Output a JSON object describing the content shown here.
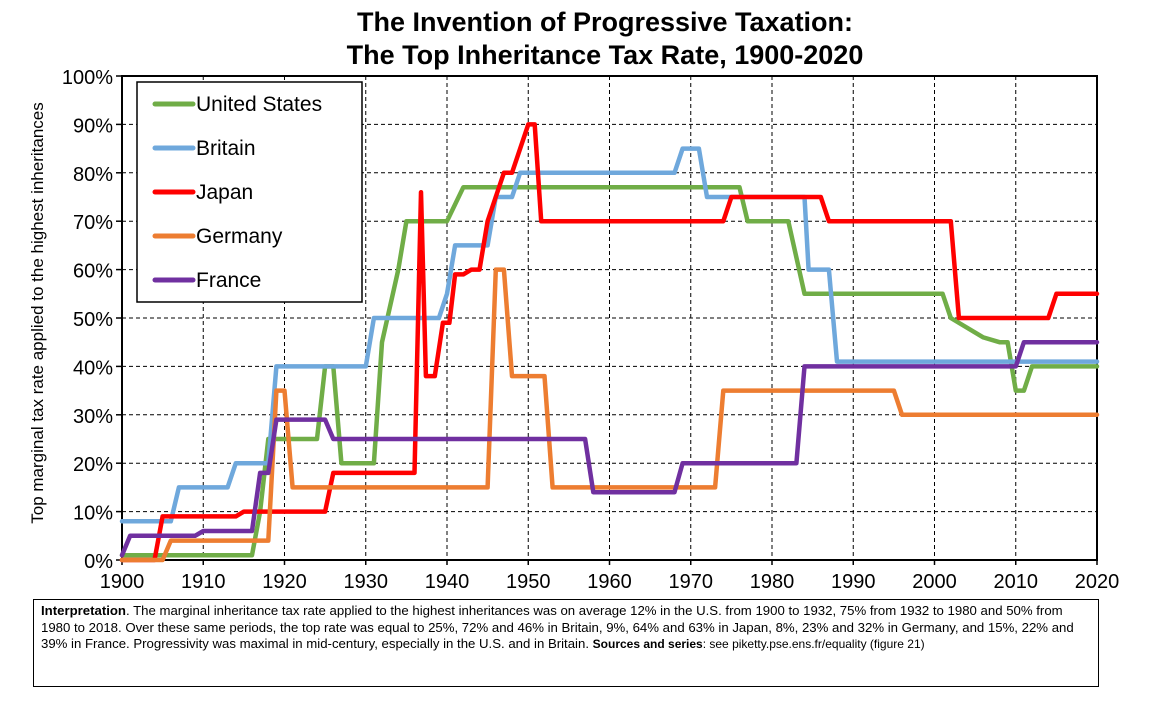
{
  "chart_data": {
    "type": "line",
    "title": "The Invention of Progressive Taxation:",
    "subtitle": "The Top Inheritance Tax Rate, 1900-2020",
    "xlabel": "",
    "ylabel": "Top marginal tax rate applied to the highest inheritances",
    "xlim": [
      1900,
      2020
    ],
    "ylim": [
      0,
      100
    ],
    "x_ticks": [
      "1900",
      "1910",
      "1920",
      "1930",
      "1940",
      "1950",
      "1960",
      "1970",
      "1980",
      "1990",
      "2000",
      "2010",
      "2020"
    ],
    "y_ticks": [
      "0%",
      "10%",
      "20%",
      "30%",
      "40%",
      "50%",
      "60%",
      "70%",
      "80%",
      "90%",
      "100%"
    ],
    "grid": "dashed",
    "legend_position": "top-left",
    "series": [
      {
        "name": "United States",
        "color": "#70ad47",
        "points": [
          [
            1900,
            1
          ],
          [
            1916,
            1
          ],
          [
            1917,
            10
          ],
          [
            1918,
            25
          ],
          [
            1924,
            25
          ],
          [
            1925,
            40
          ],
          [
            1926,
            40
          ],
          [
            1927,
            20
          ],
          [
            1928,
            20
          ],
          [
            1931,
            20
          ],
          [
            1932,
            45
          ],
          [
            1934,
            60
          ],
          [
            1935,
            70
          ],
          [
            1936,
            70
          ],
          [
            1940,
            70
          ],
          [
            1942,
            77
          ],
          [
            1976,
            77
          ],
          [
            1977,
            70
          ],
          [
            1982,
            70
          ],
          [
            1984,
            55
          ],
          [
            2001,
            55
          ],
          [
            2002,
            50
          ],
          [
            2006,
            46
          ],
          [
            2008,
            45
          ],
          [
            2009,
            45
          ],
          [
            2010,
            35
          ],
          [
            2011,
            35
          ],
          [
            2012,
            40
          ],
          [
            2020,
            40
          ]
        ]
      },
      {
        "name": "Britain",
        "color": "#6fa8dc",
        "points": [
          [
            1900,
            8
          ],
          [
            1906,
            8
          ],
          [
            1907,
            15
          ],
          [
            1913,
            15
          ],
          [
            1914,
            20
          ],
          [
            1918,
            20
          ],
          [
            1919,
            40
          ],
          [
            1930,
            40
          ],
          [
            1931,
            50
          ],
          [
            1939,
            50
          ],
          [
            1940,
            55
          ],
          [
            1941,
            65
          ],
          [
            1945,
            65
          ],
          [
            1946,
            75
          ],
          [
            1948,
            75
          ],
          [
            1949,
            80
          ],
          [
            1968,
            80
          ],
          [
            1969,
            85
          ],
          [
            1971,
            85
          ],
          [
            1972,
            75
          ],
          [
            1974,
            75
          ],
          [
            1975,
            75
          ],
          [
            1984,
            75
          ],
          [
            1984.5,
            60
          ],
          [
            1987,
            60
          ],
          [
            1988,
            41
          ],
          [
            2020,
            41
          ]
        ]
      },
      {
        "name": "Japan",
        "color": "#ff0000",
        "points": [
          [
            1900,
            0
          ],
          [
            1904,
            0
          ],
          [
            1905,
            9
          ],
          [
            1914,
            9
          ],
          [
            1915,
            10
          ],
          [
            1925,
            10
          ],
          [
            1926,
            18
          ],
          [
            1936,
            18
          ],
          [
            1936.8,
            76
          ],
          [
            1937.4,
            38
          ],
          [
            1938.5,
            38
          ],
          [
            1939.5,
            49
          ],
          [
            1940.3,
            49
          ],
          [
            1941,
            59
          ],
          [
            1942,
            59
          ],
          [
            1943,
            60
          ],
          [
            1944,
            60
          ],
          [
            1945,
            70
          ],
          [
            1947,
            80
          ],
          [
            1948,
            80
          ],
          [
            1950,
            90
          ],
          [
            1950.8,
            90
          ],
          [
            1951.6,
            70
          ],
          [
            1974,
            70
          ],
          [
            1975,
            75
          ],
          [
            1986,
            75
          ],
          [
            1987,
            70
          ],
          [
            2002,
            70
          ],
          [
            2003,
            50
          ],
          [
            2014,
            50
          ],
          [
            2015,
            55
          ],
          [
            2020,
            55
          ]
        ]
      },
      {
        "name": "Germany",
        "color": "#ed7d31",
        "points": [
          [
            1900,
            0
          ],
          [
            1905,
            0
          ],
          [
            1906,
            4
          ],
          [
            1918,
            4
          ],
          [
            1919,
            35
          ],
          [
            1920,
            35
          ],
          [
            1921,
            15
          ],
          [
            1944,
            15
          ],
          [
            1945,
            15
          ],
          [
            1946,
            60
          ],
          [
            1947,
            60
          ],
          [
            1948,
            38
          ],
          [
            1952,
            38
          ],
          [
            1953,
            15
          ],
          [
            1972,
            15
          ],
          [
            1973,
            15
          ],
          [
            1974,
            35
          ],
          [
            1995,
            35
          ],
          [
            1996,
            30
          ],
          [
            2020,
            30
          ]
        ]
      },
      {
        "name": "France",
        "color": "#7030a0",
        "points": [
          [
            1900,
            1
          ],
          [
            1901,
            5
          ],
          [
            1909,
            5
          ],
          [
            1910,
            6
          ],
          [
            1916,
            6
          ],
          [
            1917,
            18
          ],
          [
            1918,
            18
          ],
          [
            1919,
            29
          ],
          [
            1925,
            29
          ],
          [
            1926,
            25
          ],
          [
            1957,
            25
          ],
          [
            1958,
            14
          ],
          [
            1968,
            14
          ],
          [
            1969,
            20
          ],
          [
            1983,
            20
          ],
          [
            1984,
            40
          ],
          [
            2010,
            40
          ],
          [
            2011,
            45
          ],
          [
            2020,
            45
          ]
        ]
      }
    ]
  },
  "note": {
    "bold_lead": "Interpretation",
    "text": ". The marginal inheritance tax rate applied to the highest inheritances was on average 12% in the U.S. from 1900 to 1932, 75% from 1932 to 1980 and 50% from 1980 to 2018. Over these same periods, the top rate was equal to 25%, 72% and 46% in Britain, 9%, 64% and 63% in Japan, 8%, 23% and 32% in Germany, and 15%, 22% and 39% in France. Progressivity was maximal in mid-century, especially in the U.S. and in Britain.",
    "sources_label": "Sources and series",
    "sources_text": ": see piketty.pse.ens.fr/equality (figure 21)"
  }
}
